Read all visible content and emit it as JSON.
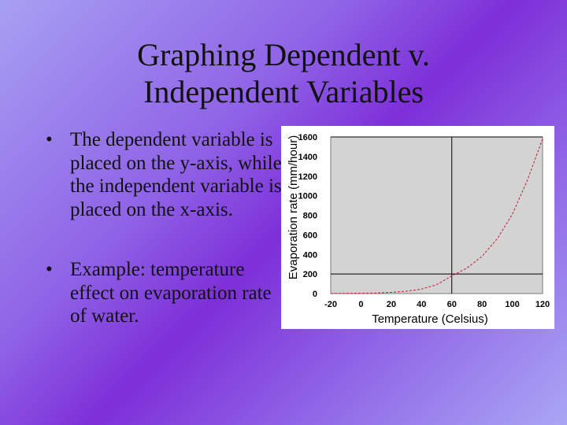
{
  "slide": {
    "title_line1": "Graphing Dependent v.",
    "title_line2": "Independent Variables",
    "bullets": [
      {
        "marker": "•",
        "text": "The dependent variable is placed on the y-axis, while the independent variable is placed on the x-axis."
      },
      {
        "marker": "•",
        "text": "Example: temperature effect on evaporation rate of water."
      }
    ]
  },
  "colors": {
    "background_center": "#7d2fd8",
    "background_edge": "#a9a6f4",
    "plot_area": "#d3d3d3",
    "curve": "#c21e3a"
  },
  "chart_data": {
    "type": "line",
    "title": "",
    "xlabel": "Temperature (Celsius)",
    "ylabel": "Evaporation rate (mm/hour)",
    "xlim": [
      -20,
      120
    ],
    "ylim": [
      0,
      1600
    ],
    "xticks": [
      -20,
      0,
      20,
      40,
      60,
      80,
      100,
      120
    ],
    "yticks": [
      0,
      200,
      400,
      600,
      800,
      1000,
      1200,
      1400,
      1600
    ],
    "grid": "major lines at x=60 and y=200, 1600",
    "series": [
      {
        "style": "dashed",
        "x": [
          -20,
          0,
          10,
          20,
          30,
          40,
          50,
          60,
          70,
          80,
          90,
          100,
          110,
          120
        ],
        "y": [
          1,
          3,
          6,
          12,
          24,
          46,
          91,
          180,
          260,
          380,
          560,
          810,
          1160,
          1580
        ]
      }
    ]
  }
}
